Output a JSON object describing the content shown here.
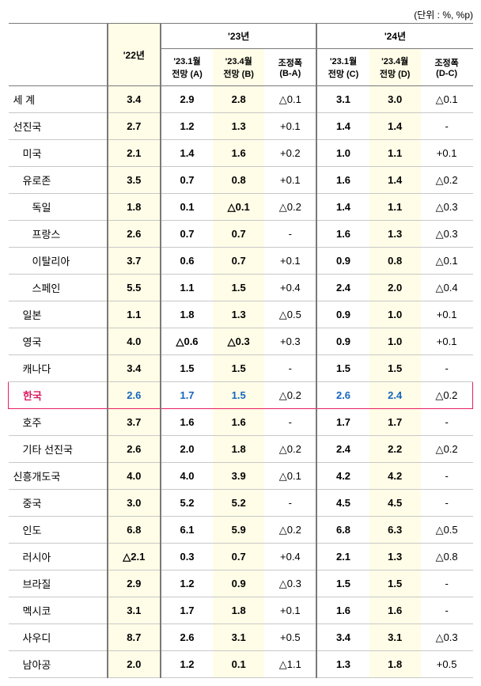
{
  "unit_label": "(단위 : %, %p)",
  "headers": {
    "y22": "'22년",
    "y23": "'23년",
    "y24": "'24년",
    "a": "'23.1월\n전망 (A)",
    "b": "'23.4월\n전망 (B)",
    "ba": "조정폭\n(B-A)",
    "c": "'23.1월\n전망 (C)",
    "d": "'23.4월\n전망 (D)",
    "dc": "조정폭\n(D-C)"
  },
  "rows": [
    {
      "label": "세 계",
      "indent": 0,
      "y22": "3.4",
      "a": "2.9",
      "b": "2.8",
      "ba": "△0.1",
      "c": "3.1",
      "d": "3.0",
      "dc": "△0.1",
      "bold": true
    },
    {
      "label": "선진국",
      "indent": 0,
      "y22": "2.7",
      "a": "1.2",
      "b": "1.3",
      "ba": "+0.1",
      "c": "1.4",
      "d": "1.4",
      "dc": "-",
      "bold": true
    },
    {
      "label": "미국",
      "indent": 1,
      "y22": "2.1",
      "a": "1.4",
      "b": "1.6",
      "ba": "+0.2",
      "c": "1.0",
      "d": "1.1",
      "dc": "+0.1",
      "bold": true
    },
    {
      "label": "유로존",
      "indent": 1,
      "y22": "3.5",
      "a": "0.7",
      "b": "0.8",
      "ba": "+0.1",
      "c": "1.6",
      "d": "1.4",
      "dc": "△0.2",
      "bold": true
    },
    {
      "label": "독일",
      "indent": 2,
      "y22": "1.8",
      "a": "0.1",
      "b": "△0.1",
      "ba": "△0.2",
      "c": "1.4",
      "d": "1.1",
      "dc": "△0.3",
      "bold": true
    },
    {
      "label": "프랑스",
      "indent": 2,
      "y22": "2.6",
      "a": "0.7",
      "b": "0.7",
      "ba": "-",
      "c": "1.6",
      "d": "1.3",
      "dc": "△0.3",
      "bold": true
    },
    {
      "label": "이탈리아",
      "indent": 2,
      "y22": "3.7",
      "a": "0.6",
      "b": "0.7",
      "ba": "+0.1",
      "c": "0.9",
      "d": "0.8",
      "dc": "△0.1",
      "bold": true
    },
    {
      "label": "스페인",
      "indent": 2,
      "y22": "5.5",
      "a": "1.1",
      "b": "1.5",
      "ba": "+0.4",
      "c": "2.4",
      "d": "2.0",
      "dc": "△0.4",
      "bold": true
    },
    {
      "label": "일본",
      "indent": 1,
      "y22": "1.1",
      "a": "1.8",
      "b": "1.3",
      "ba": "△0.5",
      "c": "0.9",
      "d": "1.0",
      "dc": "+0.1",
      "bold": true
    },
    {
      "label": "영국",
      "indent": 1,
      "y22": "4.0",
      "a": "△0.6",
      "b": "△0.3",
      "ba": "+0.3",
      "c": "0.9",
      "d": "1.0",
      "dc": "+0.1",
      "bold": true
    },
    {
      "label": "캐나다",
      "indent": 1,
      "y22": "3.4",
      "a": "1.5",
      "b": "1.5",
      "ba": "-",
      "c": "1.5",
      "d": "1.5",
      "dc": "-",
      "bold": true
    },
    {
      "label": "한국",
      "indent": 1,
      "y22": "2.6",
      "a": "1.7",
      "b": "1.5",
      "ba": "△0.2",
      "c": "2.6",
      "d": "2.4",
      "dc": "△0.2",
      "bold": true,
      "highlight": true
    },
    {
      "label": "호주",
      "indent": 1,
      "y22": "3.7",
      "a": "1.6",
      "b": "1.6",
      "ba": "-",
      "c": "1.7",
      "d": "1.7",
      "dc": "-",
      "bold": true
    },
    {
      "label": "기타 선진국",
      "indent": 1,
      "y22": "2.6",
      "a": "2.0",
      "b": "1.8",
      "ba": "△0.2",
      "c": "2.4",
      "d": "2.2",
      "dc": "△0.2",
      "bold": true
    },
    {
      "label": "신흥개도국",
      "indent": 0,
      "y22": "4.0",
      "a": "4.0",
      "b": "3.9",
      "ba": "△0.1",
      "c": "4.2",
      "d": "4.2",
      "dc": "-",
      "bold": true
    },
    {
      "label": "중국",
      "indent": 1,
      "y22": "3.0",
      "a": "5.2",
      "b": "5.2",
      "ba": "-",
      "c": "4.5",
      "d": "4.5",
      "dc": "-",
      "bold": true
    },
    {
      "label": "인도",
      "indent": 1,
      "y22": "6.8",
      "a": "6.1",
      "b": "5.9",
      "ba": "△0.2",
      "c": "6.8",
      "d": "6.3",
      "dc": "△0.5",
      "bold": true
    },
    {
      "label": "러시아",
      "indent": 1,
      "y22": "△2.1",
      "a": "0.3",
      "b": "0.7",
      "ba": "+0.4",
      "c": "2.1",
      "d": "1.3",
      "dc": "△0.8",
      "bold": true
    },
    {
      "label": "브라질",
      "indent": 1,
      "y22": "2.9",
      "a": "1.2",
      "b": "0.9",
      "ba": "△0.3",
      "c": "1.5",
      "d": "1.5",
      "dc": "-",
      "bold": true
    },
    {
      "label": "멕시코",
      "indent": 1,
      "y22": "3.1",
      "a": "1.7",
      "b": "1.8",
      "ba": "+0.1",
      "c": "1.6",
      "d": "1.6",
      "dc": "-",
      "bold": true
    },
    {
      "label": "사우디",
      "indent": 1,
      "y22": "8.7",
      "a": "2.6",
      "b": "3.1",
      "ba": "+0.5",
      "c": "3.4",
      "d": "3.1",
      "dc": "△0.3",
      "bold": true
    },
    {
      "label": "남아공",
      "indent": 1,
      "y22": "2.0",
      "a": "1.2",
      "b": "0.1",
      "ba": "△1.1",
      "c": "1.3",
      "d": "1.8",
      "dc": "+0.5",
      "bold": true
    }
  ]
}
